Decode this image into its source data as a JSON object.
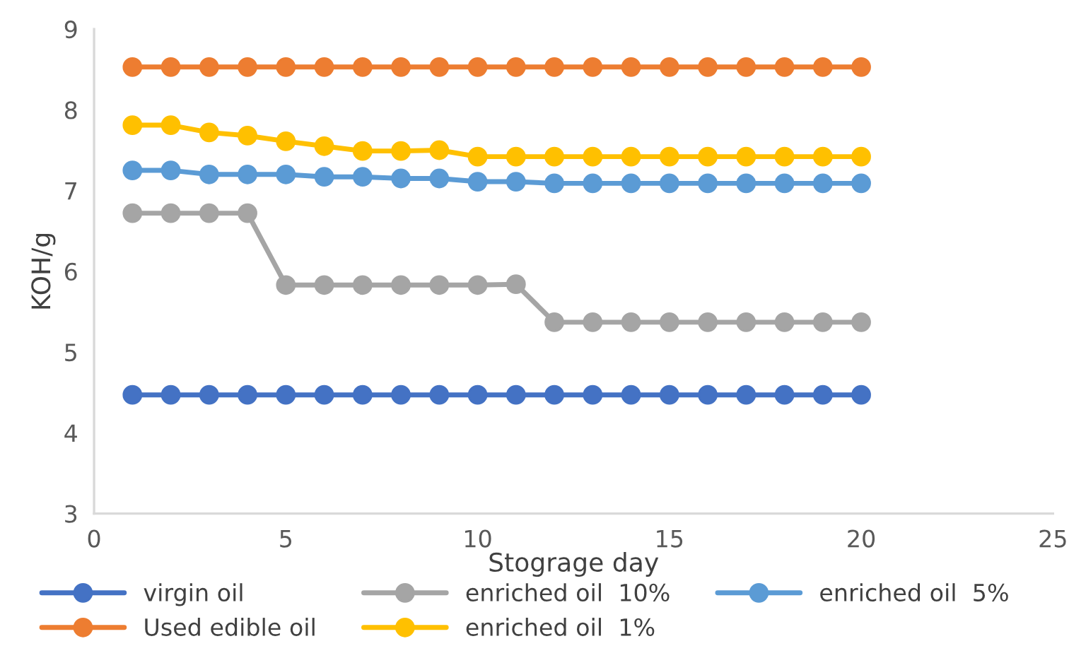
{
  "chart_data": {
    "type": "line",
    "xlabel": "Stograge day",
    "ylabel": "KOH/g",
    "x": [
      1,
      2,
      3,
      4,
      5,
      6,
      7,
      8,
      9,
      10,
      11,
      12,
      13,
      14,
      15,
      16,
      17,
      18,
      19,
      20
    ],
    "xlim": [
      0,
      25
    ],
    "xticks": [
      0,
      5,
      10,
      15,
      20,
      25
    ],
    "ylim": [
      3,
      9
    ],
    "yticks": [
      3,
      4,
      5,
      6,
      7,
      8,
      9
    ],
    "grid": false,
    "legend": "bottom",
    "marker": "circle",
    "line_style": "solid",
    "series": [
      {
        "name": "virgin oil",
        "color": "#4472c4",
        "values": [
          4.47,
          4.47,
          4.47,
          4.47,
          4.47,
          4.47,
          4.47,
          4.47,
          4.47,
          4.47,
          4.47,
          4.47,
          4.47,
          4.47,
          4.47,
          4.47,
          4.47,
          4.47,
          4.47,
          4.47
        ]
      },
      {
        "name": "Used edible oil",
        "color": "#ed7d31",
        "values": [
          8.53,
          8.53,
          8.53,
          8.53,
          8.53,
          8.53,
          8.53,
          8.53,
          8.53,
          8.53,
          8.53,
          8.53,
          8.53,
          8.53,
          8.53,
          8.53,
          8.53,
          8.53,
          8.53,
          8.53
        ]
      },
      {
        "name": "enriched oil  10%",
        "color": "#a5a5a5",
        "values": [
          6.72,
          6.72,
          6.72,
          6.72,
          5.83,
          5.83,
          5.83,
          5.83,
          5.83,
          5.83,
          5.84,
          5.37,
          5.37,
          5.37,
          5.37,
          5.37,
          5.37,
          5.37,
          5.37,
          5.37
        ]
      },
      {
        "name": "enriched oil  1%",
        "color": "#ffc000",
        "values": [
          7.81,
          7.81,
          7.72,
          7.68,
          7.61,
          7.55,
          7.49,
          7.49,
          7.5,
          7.42,
          7.42,
          7.42,
          7.42,
          7.42,
          7.42,
          7.42,
          7.42,
          7.42,
          7.42,
          7.42
        ]
      },
      {
        "name": "enriched oil  5%",
        "color": "#5b9bd5",
        "values": [
          7.25,
          7.25,
          7.2,
          7.2,
          7.2,
          7.17,
          7.17,
          7.15,
          7.15,
          7.11,
          7.11,
          7.09,
          7.09,
          7.09,
          7.09,
          7.09,
          7.09,
          7.09,
          7.09,
          7.09
        ]
      }
    ]
  }
}
